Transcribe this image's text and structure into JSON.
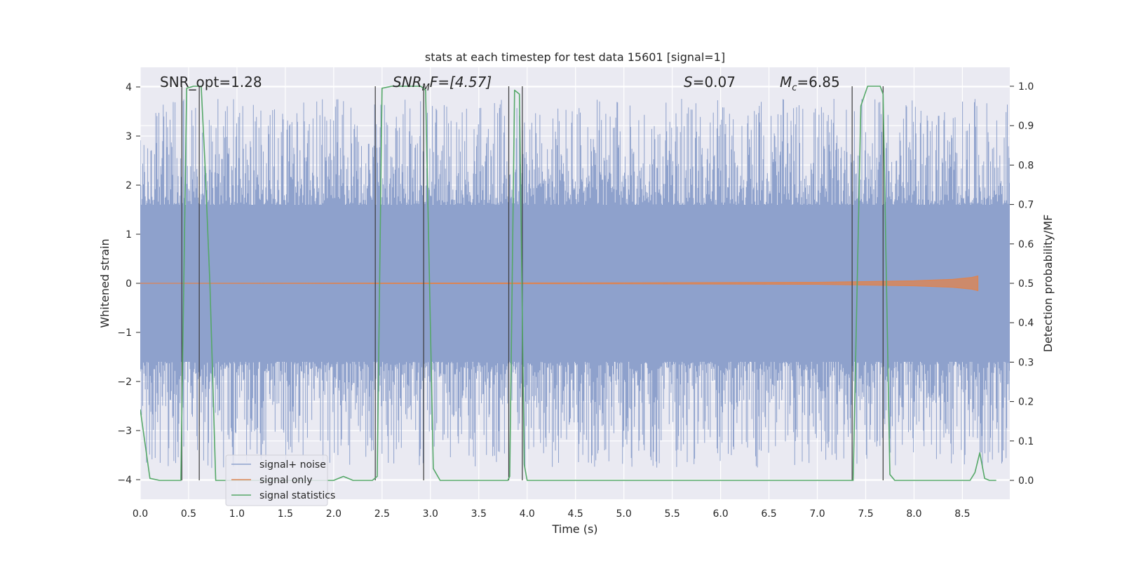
{
  "chart_data": {
    "type": "line",
    "title": "stats at each timestep for test data 15601 [signal=1]",
    "xlabel": "Time (s)",
    "ylabel_left": "Whitened strain",
    "ylabel_right": "Detection probability/MF",
    "xlim": [
      0.0,
      8.99
    ],
    "ylim_left": [
      -4.4,
      4.4
    ],
    "ylim_right": [
      -0.048,
      1.048
    ],
    "x_ticks": [
      "0.0",
      "0.5",
      "1.0",
      "1.5",
      "2.0",
      "2.5",
      "3.0",
      "3.5",
      "4.0",
      "4.5",
      "5.0",
      "5.5",
      "6.0",
      "6.5",
      "7.0",
      "7.5",
      "8.0",
      "8.5"
    ],
    "y_ticks_left": [
      "4",
      "3",
      "2",
      "1",
      "0",
      "−1",
      "−2",
      "−3",
      "−4"
    ],
    "y_ticks_right": [
      "1.0",
      "0.9",
      "0.8",
      "0.7",
      "0.6",
      "0.5",
      "0.4",
      "0.3",
      "0.2",
      "0.1",
      "0.0"
    ],
    "grid": true,
    "legend_position": "lower-left",
    "annotations": {
      "snr_opt": "SNR_opt=1.28",
      "snr_mf_base": "SNR",
      "snr_mf_sub": "M",
      "snr_mf_tail": "F=[4.57]",
      "s_var": "S",
      "s_val": "=0.07",
      "mc_var": "M",
      "mc_sub": "c",
      "mc_val": "=6.85"
    },
    "series": [
      {
        "name": "signal+ noise",
        "color": "#8ea1cc",
        "amplitude_envelope": [
          -4.0,
          4.0
        ],
        "dense_band": [
          -1.6,
          1.6
        ]
      },
      {
        "name": "signal only",
        "color": "#dd8452",
        "x": [
          0.0,
          5.0,
          7.0,
          8.0,
          8.4,
          8.6,
          8.66
        ],
        "amplitude": [
          0.0,
          0.01,
          0.02,
          0.05,
          0.08,
          0.12,
          0.15
        ]
      },
      {
        "name": "signal statistics",
        "color": "#55a868",
        "x": [
          0.0,
          0.1,
          0.2,
          0.3,
          0.42,
          0.48,
          0.55,
          0.6,
          0.63,
          0.67,
          0.72,
          0.78,
          1.0,
          1.5,
          2.0,
          2.1,
          2.2,
          2.4,
          2.45,
          2.5,
          2.6,
          2.8,
          2.9,
          2.95,
          3.03,
          3.1,
          3.5,
          3.8,
          3.82,
          3.87,
          3.92,
          3.97,
          4.0,
          4.5,
          5.0,
          5.5,
          6.0,
          6.5,
          7.0,
          7.37,
          7.45,
          7.52,
          7.6,
          7.65,
          7.68,
          7.75,
          7.8,
          8.0,
          8.5,
          8.58,
          8.63,
          8.68,
          8.73,
          8.78,
          8.85
        ],
        "values": [
          0.18,
          0.005,
          0.0,
          0.0,
          0.0,
          0.995,
          1.0,
          1.0,
          1.0,
          0.8,
          0.5,
          0.0,
          0.0,
          0.0,
          0.0,
          0.01,
          0.0,
          0.0,
          0.01,
          0.995,
          1.0,
          1.0,
          1.0,
          0.99,
          0.03,
          0.0,
          0.0,
          0.0,
          0.01,
          0.99,
          0.98,
          0.04,
          0.0,
          0.0,
          0.0,
          0.0,
          0.0,
          0.0,
          0.0,
          0.0,
          0.95,
          1.0,
          1.0,
          1.0,
          0.98,
          0.015,
          0.0,
          0.0,
          0.0,
          0.0,
          0.02,
          0.07,
          0.005,
          0.0,
          0.0
        ]
      }
    ],
    "marker_lines_x": [
      0.43,
      0.61,
      2.43,
      2.93,
      3.81,
      3.95,
      7.36,
      7.68
    ]
  }
}
